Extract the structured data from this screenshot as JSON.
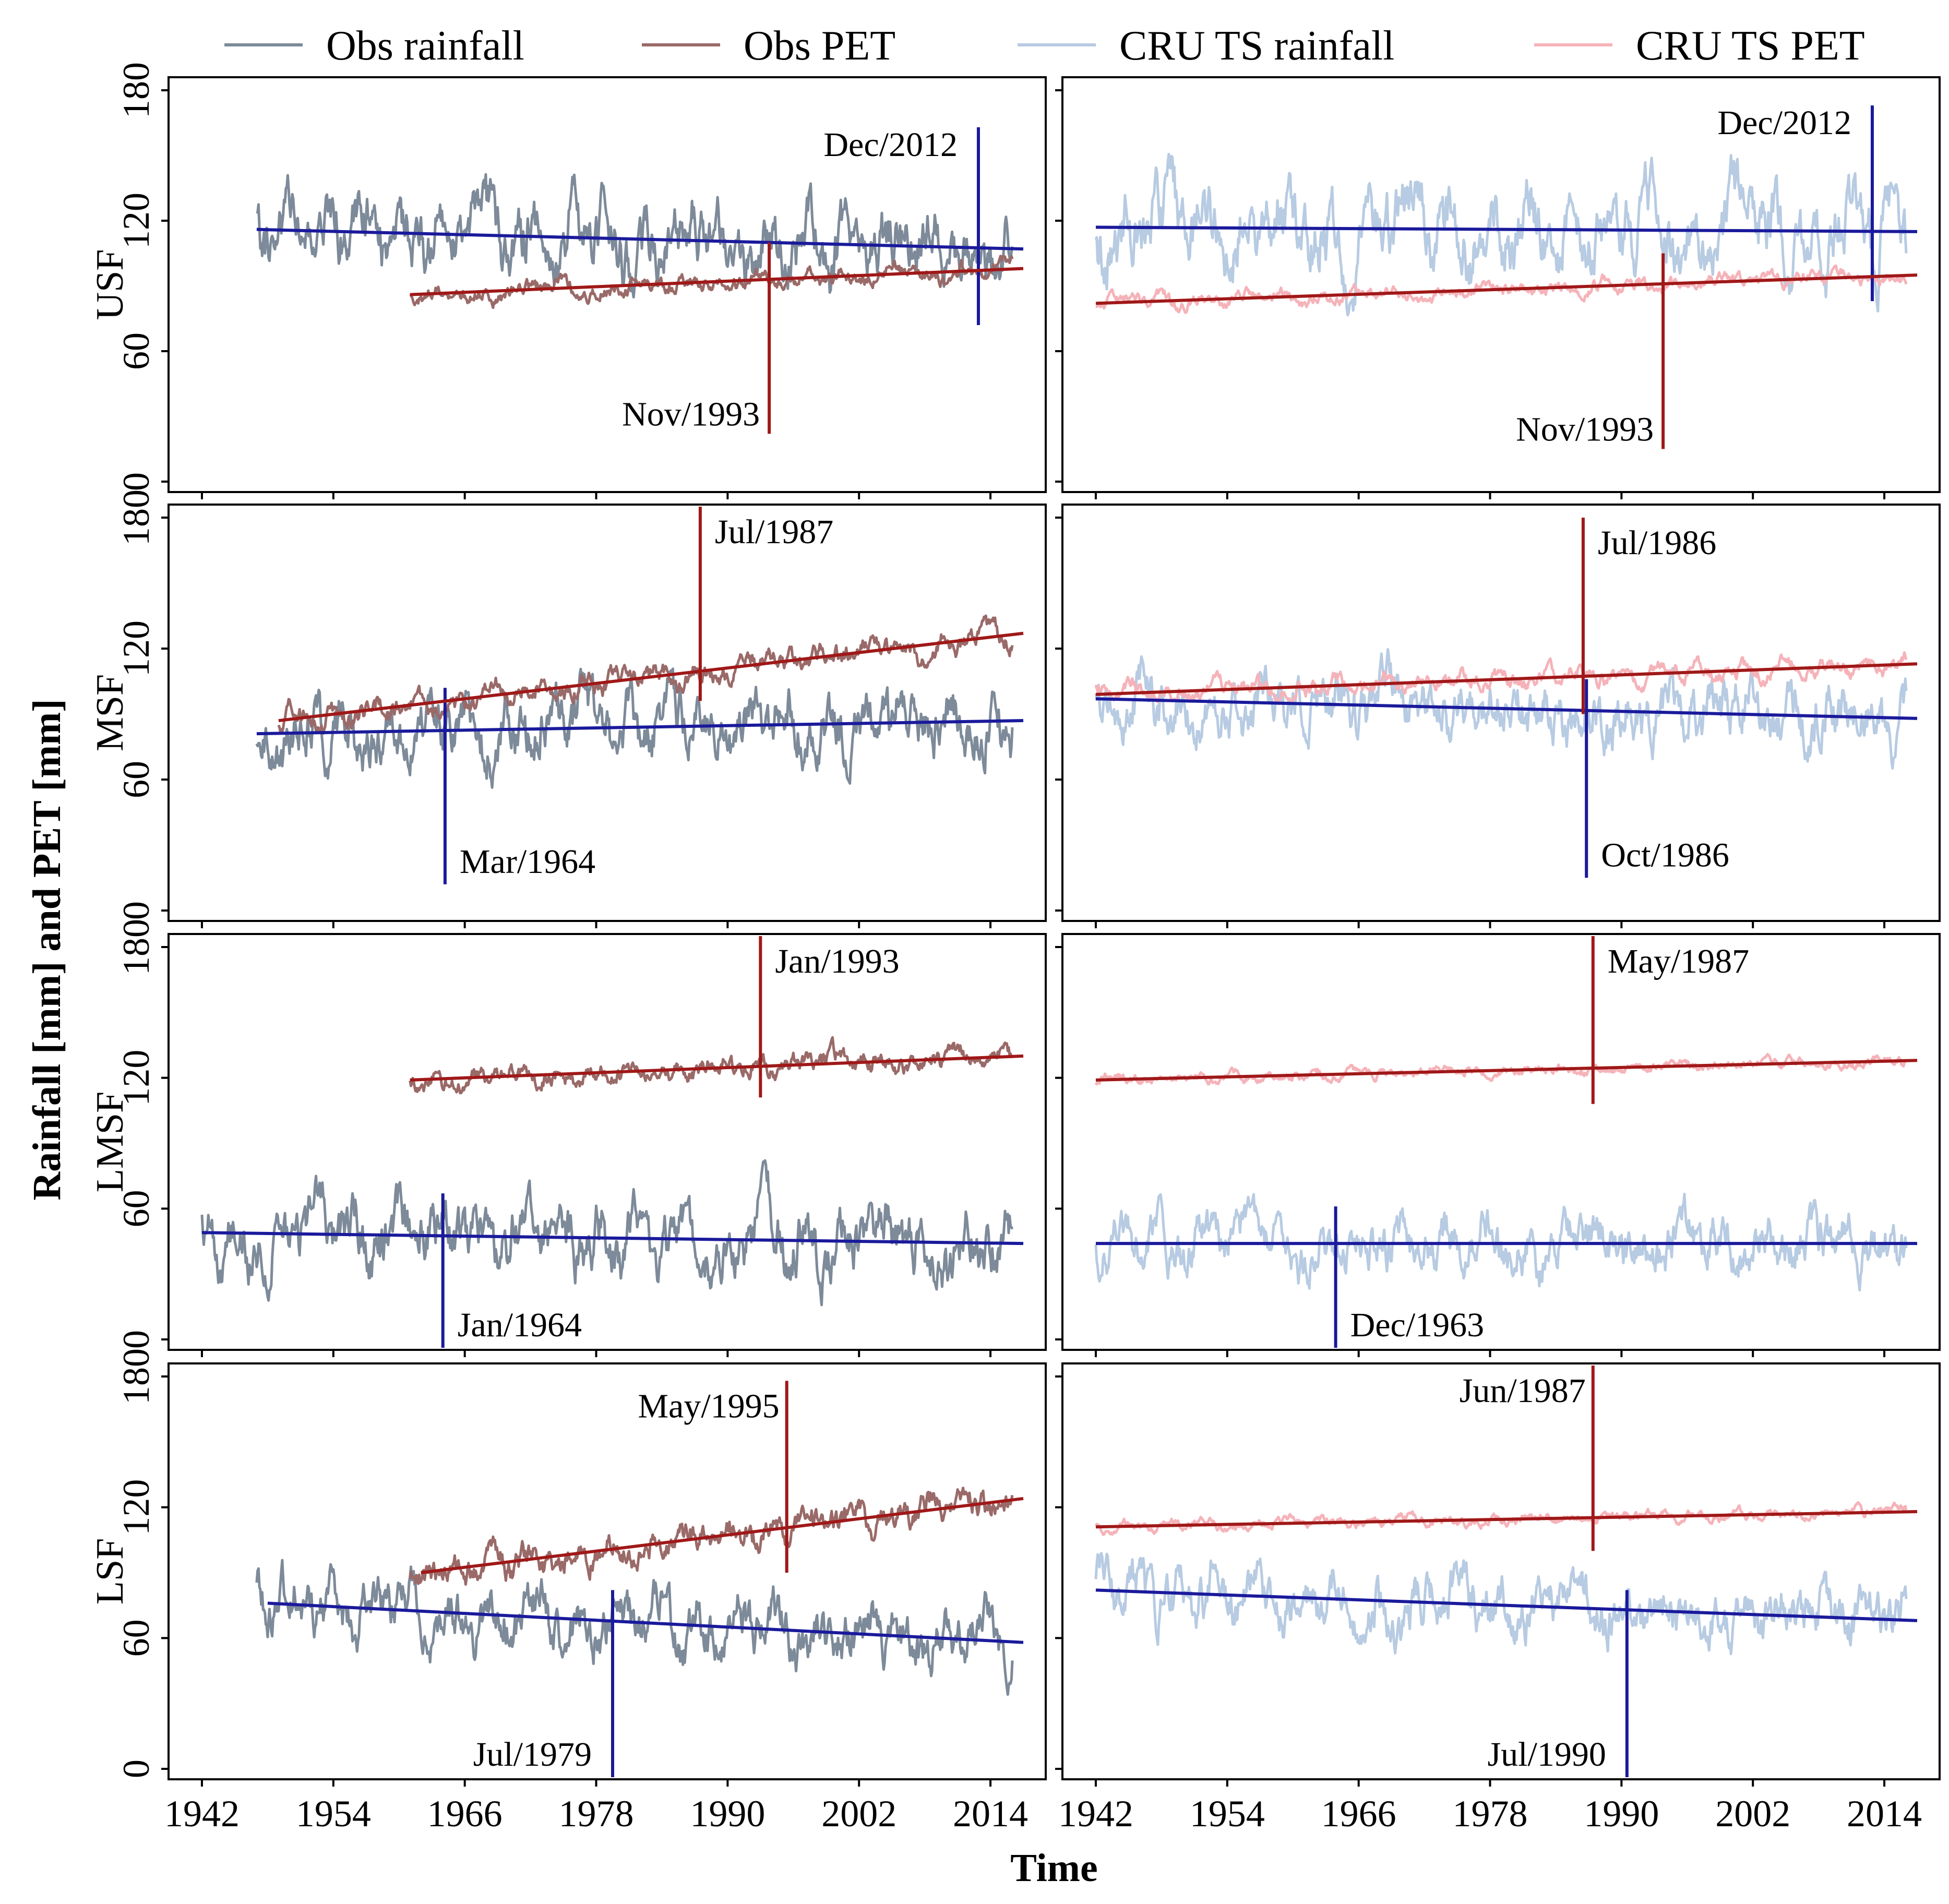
{
  "colors": {
    "obs_rainfall": "#7d8a99",
    "obs_pet": "#9a6a68",
    "cru_rainfall": "#b7cbe2",
    "cru_pet": "#f5b3b9",
    "rain_trend": "#1a1a9c",
    "pet_trend": "#a01818"
  },
  "chart_data": {
    "type": "line",
    "title": "",
    "xlabel": "Time",
    "ylabel": "Rainfall [mm] and PET [mm]",
    "xlim": [
      1940,
      2018
    ],
    "ylim": [
      0,
      180
    ],
    "x_ticks": [
      1942,
      1954,
      1966,
      1978,
      1990,
      2002,
      2014
    ],
    "y_ticks": [
      0,
      60,
      120,
      180
    ],
    "x_tick_labels": [
      "1942",
      "1954",
      "1966",
      "1978",
      "1990",
      "2002",
      "2014"
    ],
    "y_tick_labels": [
      "0",
      "60",
      "120",
      "180"
    ],
    "legend": {
      "placement": "top",
      "entries": [
        {
          "key": "obs_rainfall",
          "label": "Obs rainfall"
        },
        {
          "key": "obs_pet",
          "label": "Obs PET"
        },
        {
          "key": "cru_rainfall",
          "label": "CRU TS rainfall"
        },
        {
          "key": "cru_pet",
          "label": "CRU TS PET"
        }
      ]
    },
    "columns": [
      "Obs",
      "CRU TS"
    ],
    "rows": [
      {
        "label": "USF",
        "panels": [
          {
            "dataset": "Obs",
            "rainfall": {
              "x_range": [
                1947,
                2016
              ],
              "mean": 112,
              "amplitude": 20,
              "seed": 11,
              "trend": {
                "x": [
                  1947,
                  2017
                ],
                "y": [
                  116,
                  107
                ]
              },
              "breakpoint": {
                "year": 2012.9,
                "label": "Dec/2012",
                "span": [
                  72,
                  163
                ]
              }
            },
            "pet": {
              "x_range": [
                1961,
                2016
              ],
              "mean": 90,
              "amplitude": 5,
              "seed": 12,
              "trend": {
                "x": [
                  1961,
                  2017
                ],
                "y": [
                  86,
                  98
                ]
              },
              "breakpoint": {
                "year": 1993.8,
                "label": "Nov/1993",
                "span": [
                  22,
                  110
                ]
              }
            }
          },
          {
            "dataset": "CRU TS",
            "rainfall": {
              "x_range": [
                1942,
                2016
              ],
              "mean": 115,
              "amplitude": 22,
              "seed": 13,
              "trend": {
                "x": [
                  1942,
                  2017
                ],
                "y": [
                  117,
                  115
                ]
              },
              "breakpoint": {
                "year": 2012.9,
                "label": "Dec/2012",
                "span": [
                  83,
                  173
                ]
              }
            },
            "pet": {
              "x_range": [
                1942,
                2016
              ],
              "mean": 88,
              "amplitude": 4,
              "seed": 14,
              "trend": {
                "x": [
                  1942,
                  2017
                ],
                "y": [
                  82,
                  95
                ]
              },
              "breakpoint": {
                "year": 1993.8,
                "label": "Nov/1993",
                "span": [
                  15,
                  105
                ]
              }
            }
          }
        ]
      },
      {
        "label": "MSF",
        "panels": [
          {
            "dataset": "Obs",
            "rainfall": {
              "x_range": [
                1947,
                2016
              ],
              "mean": 83,
              "amplitude": 18,
              "seed": 21,
              "trend": {
                "x": [
                  1947,
                  2017
                ],
                "y": [
                  81,
                  87
                ]
              },
              "breakpoint": {
                "year": 1964.2,
                "label": "Mar/1964",
                "span": [
                  12,
                  102
                ]
              }
            },
            "pet": {
              "x_range": [
                1949,
                2016
              ],
              "mean": 103,
              "amplitude": 7,
              "seed": 22,
              "trend": {
                "x": [
                  1949,
                  2017
                ],
                "y": [
                  87,
                  127
                ]
              },
              "breakpoint": {
                "year": 1987.5,
                "label": "Jul/1987",
                "span": [
                  96,
                  186
                ]
              }
            }
          },
          {
            "dataset": "CRU TS",
            "rainfall": {
              "x_range": [
                1942,
                2016
              ],
              "mean": 92,
              "amplitude": 17,
              "seed": 23,
              "trend": {
                "x": [
                  1942,
                  2017
                ],
                "y": [
                  97,
                  88
                ]
              },
              "breakpoint": {
                "year": 1986.8,
                "label": "Oct/1986",
                "span": [
                  15,
                  106
                ]
              }
            },
            "pet": {
              "x_range": [
                1942,
                2016
              ],
              "mean": 106,
              "amplitude": 5,
              "seed": 24,
              "trend": {
                "x": [
                  1942,
                  2017
                ],
                "y": [
                  99,
                  113
                ]
              },
              "breakpoint": {
                "year": 1986.5,
                "label": "Jul/1986",
                "span": [
                  90,
                  180
                ]
              }
            }
          }
        ]
      },
      {
        "label": "LMSF",
        "panels": [
          {
            "dataset": "Obs",
            "rainfall": {
              "x_range": [
                1942,
                2016
              ],
              "mean": 45,
              "amplitude": 18,
              "seed": 31,
              "trend": {
                "x": [
                  1942,
                  2017
                ],
                "y": [
                  49,
                  44
                ]
              },
              "breakpoint": {
                "year": 1964.0,
                "label": "Jan/1964",
                "span": [
                  -7,
                  67
                ]
              }
            },
            "pet": {
              "x_range": [
                1961,
                2016
              ],
              "mean": 124,
              "amplitude": 6,
              "seed": 32,
              "trend": {
                "x": [
                  1961,
                  2017
                ],
                "y": [
                  119,
                  130
                ]
              },
              "breakpoint": {
                "year": 1993.0,
                "label": "Jan/1993",
                "span": [
                  111,
                  190
                ]
              }
            }
          },
          {
            "dataset": "CRU TS",
            "rainfall": {
              "x_range": [
                1942,
                2016
              ],
              "mean": 44,
              "amplitude": 15,
              "seed": 33,
              "trend": {
                "x": [
                  1942,
                  2017
                ],
                "y": [
                  44,
                  44
                ]
              },
              "breakpoint": {
                "year": 1963.9,
                "label": "Dec/1963",
                "span": [
                  -7,
                  61
                ]
              }
            },
            "pet": {
              "x_range": [
                1942,
                2016
              ],
              "mean": 124,
              "amplitude": 3,
              "seed": 34,
              "trend": {
                "x": [
                  1942,
                  2017
                ],
                "y": [
                  119,
                  128
                ]
              },
              "breakpoint": {
                "year": 1987.4,
                "label": "May/1987",
                "span": [
                  108,
                  190
                ]
              }
            }
          }
        ]
      },
      {
        "label": "LSF",
        "panels": [
          {
            "dataset": "Obs",
            "rainfall": {
              "x_range": [
                1947,
                2016
              ],
              "mean": 65,
              "amplitude": 16,
              "seed": 41,
              "trend": {
                "x": [
                  1948,
                  2017
                ],
                "y": [
                  76,
                  58
                ]
              },
              "breakpoint": {
                "year": 1979.5,
                "label": "Jul/1979",
                "span": [
                  -7,
                  82
                ]
              }
            },
            "pet": {
              "x_range": [
                1961,
                2016
              ],
              "mean": 108,
              "amplitude": 9,
              "seed": 42,
              "trend": {
                "x": [
                  1962,
                  2017
                ],
                "y": [
                  90,
                  124
                ]
              },
              "breakpoint": {
                "year": 1995.4,
                "label": "May/1995",
                "span": [
                  90,
                  178
                ]
              }
            }
          },
          {
            "dataset": "CRU TS",
            "rainfall": {
              "x_range": [
                1942,
                2016
              ],
              "mean": 70,
              "amplitude": 16,
              "seed": 43,
              "trend": {
                "x": [
                  1942,
                  2017
                ],
                "y": [
                  82,
                  68
                ]
              },
              "breakpoint": {
                "year": 1990.5,
                "label": "Jul/1990",
                "span": [
                  -7,
                  82
                ]
              }
            },
            "pet": {
              "x_range": [
                1942,
                2016
              ],
              "mean": 114,
              "amplitude": 3,
              "seed": 44,
              "trend": {
                "x": [
                  1942,
                  2017
                ],
                "y": [
                  111,
                  118
                ]
              },
              "breakpoint": {
                "year": 1987.4,
                "label": "Jun/1987",
                "span": [
                  100,
                  190
                ]
              }
            }
          }
        ]
      }
    ]
  }
}
